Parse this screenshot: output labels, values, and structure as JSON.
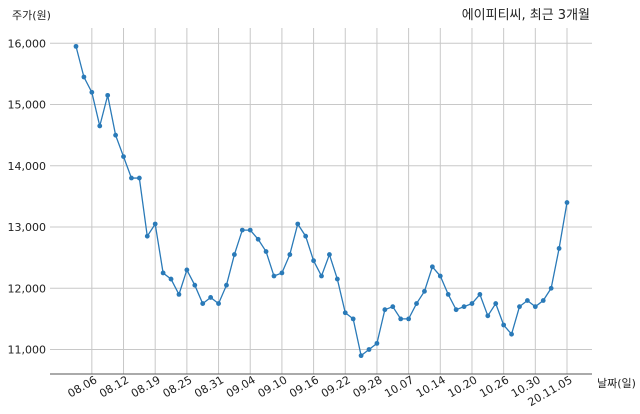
{
  "chart_data": {
    "type": "line",
    "title": "에이피티씨, 최근 3개월",
    "ylabel": "주가(원)",
    "xlabel": "날짜(일)",
    "ylim": [
      10600,
      16250
    ],
    "yticks": [
      11000,
      12000,
      13000,
      14000,
      15000,
      16000
    ],
    "ytick_labels": [
      "11,000",
      "12,000",
      "13,000",
      "14,000",
      "15,000",
      "16,000"
    ],
    "xtick_labels": [
      "08.06",
      "08.12",
      "08.19",
      "08.25",
      "08.31",
      "09.04",
      "09.10",
      "09.16",
      "09.22",
      "09.28",
      "10.07",
      "10.14",
      "10.20",
      "10.26",
      "10.30",
      "20.11.05"
    ],
    "xtick_positions": [
      2,
      6,
      10,
      14,
      18,
      22,
      26,
      30,
      34,
      38,
      42,
      46,
      50,
      54,
      58,
      62
    ],
    "x_count": 63,
    "grid": true,
    "line_color": "#2a7ab8",
    "series": [
      {
        "values": [
          15950,
          15450,
          15200,
          14650,
          15150,
          14500,
          14150,
          13800,
          13800,
          12850,
          13050,
          12250,
          12150,
          11900,
          12300,
          12050,
          11750,
          11850,
          11750,
          12050,
          12550,
          12950,
          12950,
          12800,
          12600,
          12200,
          12250,
          12550,
          13050,
          12850,
          12450,
          12200,
          12550,
          12150,
          11600,
          11500,
          10900,
          11000,
          11100,
          11650,
          11700,
          11500,
          11500,
          11750,
          11950,
          12350,
          12200,
          11900,
          11650,
          11700,
          11750,
          11900,
          11550,
          11750,
          11400,
          11250,
          11700,
          11800,
          11700,
          11800,
          12000,
          12650,
          13400
        ]
      }
    ]
  }
}
